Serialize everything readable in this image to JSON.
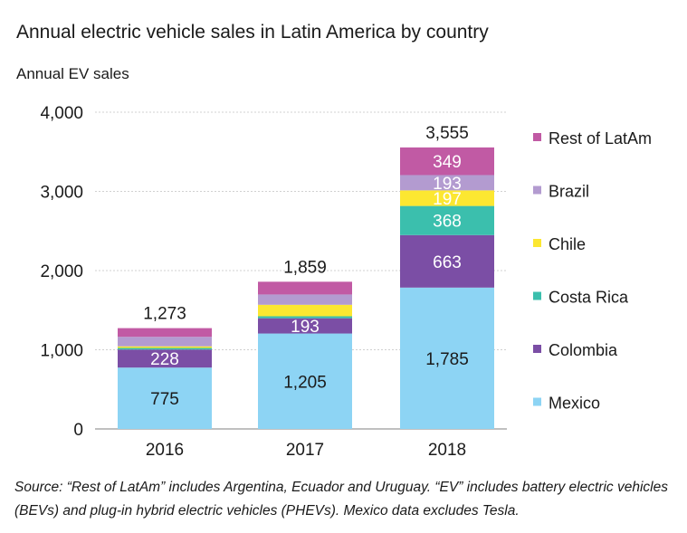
{
  "chart_data": {
    "type": "bar",
    "stacked": true,
    "title": "Annual electric vehicle sales in Latin America by country",
    "ylabel": "Annual EV sales",
    "xlabel": "",
    "ylim": [
      0,
      4000
    ],
    "yticks": [
      0,
      1000,
      2000,
      3000,
      4000
    ],
    "ytick_labels": [
      "0",
      "1,000",
      "2,000",
      "3,000",
      "4,000"
    ],
    "grid": true,
    "legend_position": "right",
    "categories": [
      "2016",
      "2017",
      "2018"
    ],
    "totals": [
      1273,
      1859,
      3555
    ],
    "total_labels": [
      "1,273",
      "1,859",
      "3,555"
    ],
    "series": [
      {
        "name": "Mexico",
        "color": "#8dd4f4",
        "values": [
          775,
          1205,
          1785
        ],
        "labels": [
          "775",
          "1,205",
          "1,785"
        ]
      },
      {
        "name": "Colombia",
        "color": "#7b4ea5",
        "values": [
          228,
          193,
          663
        ],
        "labels": [
          "228",
          "193",
          "663"
        ]
      },
      {
        "name": "Costa Rica",
        "color": "#3bbfad",
        "values": [
          20,
          25,
          368
        ],
        "labels": [
          "",
          "",
          "368"
        ]
      },
      {
        "name": "Chile",
        "color": "#fce731",
        "values": [
          20,
          145,
          197
        ],
        "labels": [
          "",
          "",
          "197"
        ]
      },
      {
        "name": "Brazil",
        "color": "#b39bd0",
        "values": [
          120,
          130,
          193
        ],
        "labels": [
          "",
          "",
          "193"
        ]
      },
      {
        "name": "Rest of LatAm",
        "color": "#c15aa4",
        "values": [
          110,
          161,
          349
        ],
        "labels": [
          "",
          "",
          "349"
        ]
      }
    ]
  },
  "source_note": "Source: “Rest of LatAm”  includes Argentina, Ecuador and Uruguay. “EV” includes battery electric vehicles (BEVs) and plug-in hybrid electric vehicles (PHEVs). Mexico data excludes Tesla."
}
